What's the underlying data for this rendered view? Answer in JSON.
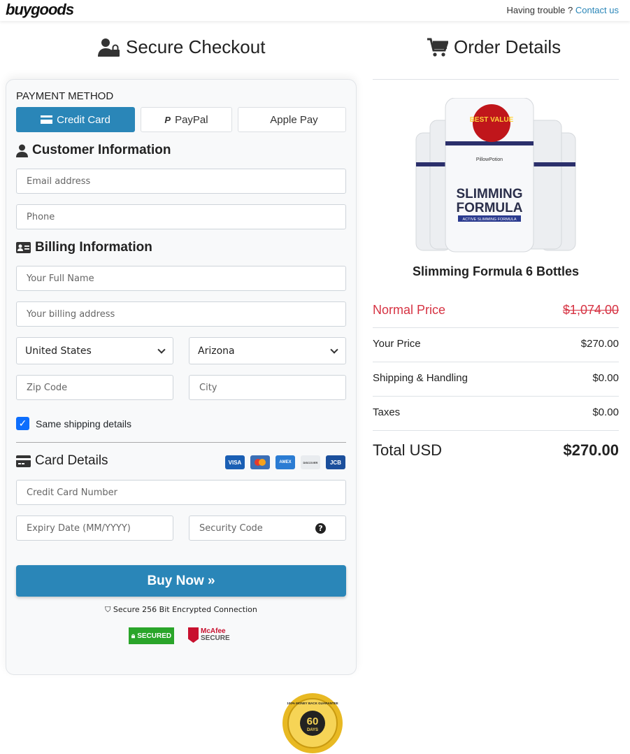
{
  "header": {
    "logo": "buygoods",
    "help_text": "Having trouble ?",
    "contact_link": "Contact us"
  },
  "checkout": {
    "title": "Secure Checkout",
    "payment_method_label": "PAYMENT METHOD",
    "payment_methods": [
      {
        "label": "Credit Card",
        "active": true
      },
      {
        "label": "PayPal",
        "active": false
      },
      {
        "label": "Apple Pay",
        "active": false
      }
    ],
    "customer_section": "Customer Information",
    "email_placeholder": "Email address",
    "phone_placeholder": "Phone",
    "billing_section": "Billing Information",
    "name_placeholder": "Your Full Name",
    "address_placeholder": "Your billing address",
    "country": "United States",
    "state": "Arizona",
    "zip_placeholder": "Zip Code",
    "city_placeholder": "City",
    "same_shipping_label": "Same shipping details",
    "same_shipping_checked": true,
    "card_section": "Card Details",
    "card_brands": [
      "VISA",
      "MC",
      "AMEX",
      "DISCOVER",
      "JCB"
    ],
    "card_number_placeholder": "Credit Card Number",
    "expiry_placeholder": "Expiry Date (MM/YYYY)",
    "security_placeholder": "Security Code",
    "buy_button": "Buy Now »",
    "secure_text": "Secure 256 Bit Encrypted Connection",
    "badges": {
      "trust_guard": "SECURED",
      "mcafee_top": "McAfee",
      "mcafee_bottom": "SECURE"
    }
  },
  "order": {
    "title": "Order Details",
    "product_name": "Slimming Formula 6 Bottles",
    "product_image_text": {
      "badge": "BEST VALUE",
      "brand": "PillowPotion",
      "line1": "SLIMMING",
      "line2": "FORMULA",
      "sub": "ACTIVE SLIMMING FORMULA"
    },
    "rows": [
      {
        "label": "Normal Price",
        "value": "$1,074.00"
      },
      {
        "label": "Your Price",
        "value": "$270.00"
      },
      {
        "label": "Shipping & Handling",
        "value": "$0.00"
      },
      {
        "label": "Taxes",
        "value": "$0.00"
      }
    ],
    "total_label": "Total USD",
    "total_value": "$270.00"
  },
  "guarantee": {
    "days": "60",
    "unit": "DAYS",
    "ring": "100% MONEY BACK GUARANTEE"
  },
  "colors": {
    "accent": "#2a86b8",
    "danger": "#d63343"
  }
}
